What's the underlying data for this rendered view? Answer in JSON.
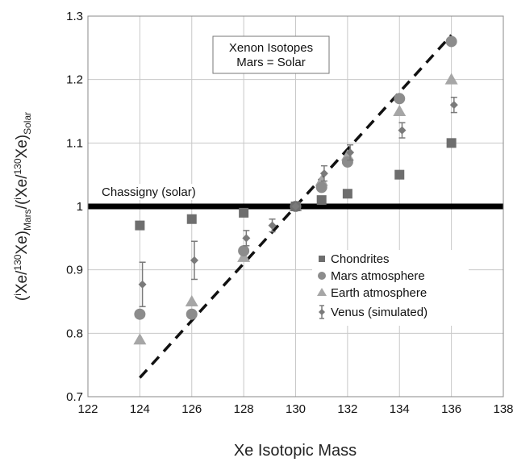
{
  "chart_data": {
    "type": "scatter",
    "title": "",
    "xlabel": "Xe Isotopic Mass",
    "ylabel": {
      "p1": "(",
      "i1": "i",
      "p2": "Xe/",
      "s1": "130",
      "p3": "Xe)",
      "sub1": "Mars",
      "p4": "/(",
      "i2": "i",
      "p5": "Xe/",
      "s2": "130",
      "p6": "Xe)",
      "sub2": "Solar"
    },
    "xlim": [
      122,
      138
    ],
    "ylim": [
      0.7,
      1.3
    ],
    "xticks": [
      122,
      124,
      126,
      128,
      130,
      132,
      134,
      136,
      138
    ],
    "yticks": [
      0.7,
      0.8,
      0.9,
      1.0,
      1.1,
      1.2,
      1.3
    ],
    "xtick_labels": [
      "122",
      "124",
      "126",
      "128",
      "130",
      "132",
      "134",
      "136",
      "138"
    ],
    "ytick_labels": [
      "0.7",
      "0.8",
      "0.9",
      "1",
      "1.1",
      "1.2",
      "1.3"
    ],
    "grid": true,
    "legend_position": "bottom-right",
    "annotations": {
      "box_line1": "Xenon Isotopes",
      "box_line2": "Mars = Solar",
      "reference_label": "Chassigny (solar)"
    },
    "reference_line": {
      "y": 1.0,
      "color": "#000000"
    },
    "trend_line": {
      "x": [
        124,
        136
      ],
      "y": [
        0.73,
        1.27
      ],
      "style": "dashed",
      "color": "#111111"
    },
    "series": [
      {
        "name": "Chondrites",
        "marker": "square",
        "color": "#6e6e6e",
        "x": [
          124,
          126,
          128,
          130,
          131,
          132,
          134,
          136
        ],
        "y": [
          0.97,
          0.98,
          0.99,
          1.0,
          1.01,
          1.02,
          1.05,
          1.1
        ]
      },
      {
        "name": "Mars atmosphere",
        "marker": "circle",
        "color": "#8c8c8c",
        "x": [
          124,
          126,
          128,
          130,
          131,
          132,
          134,
          136
        ],
        "y": [
          0.83,
          0.83,
          0.93,
          1.0,
          1.03,
          1.07,
          1.17,
          1.26
        ]
      },
      {
        "name": "Earth atmosphere",
        "marker": "triangle",
        "color": "#a6a6a6",
        "x": [
          124,
          126,
          128,
          130,
          131,
          132,
          134,
          136
        ],
        "y": [
          0.79,
          0.85,
          0.92,
          1.0,
          1.04,
          1.08,
          1.15,
          1.2
        ]
      },
      {
        "name": "Venus (simulated)",
        "marker": "diamond",
        "color": "#7a7a7a",
        "error_bars": true,
        "x": [
          124.1,
          126.1,
          128.1,
          129.1,
          130,
          131.1,
          132.1,
          134.1,
          136.1
        ],
        "y": [
          0.877,
          0.915,
          0.95,
          0.97,
          1.0,
          1.052,
          1.085,
          1.12,
          1.16
        ],
        "err": [
          0.035,
          0.03,
          0.012,
          0.01,
          0.0,
          0.012,
          0.012,
          0.012,
          0.012
        ]
      }
    ]
  }
}
